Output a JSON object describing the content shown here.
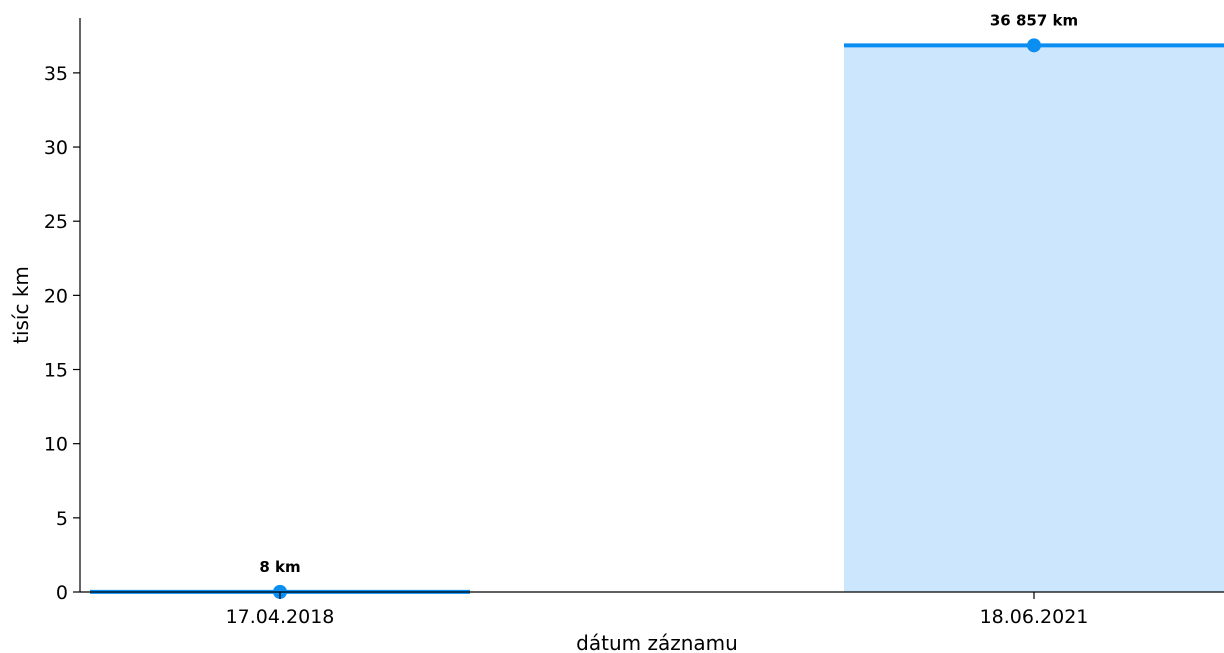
{
  "chart_data": {
    "type": "bar",
    "categories": [
      "17.04.2018",
      "18.06.2021"
    ],
    "values": [
      0.008,
      36.857
    ],
    "data_labels": [
      "8 km",
      "36 857 km"
    ],
    "xlabel": "dátum záznamu",
    "ylabel": "tisíc km",
    "ylim": [
      0,
      38.7
    ],
    "yticks": [
      0,
      5,
      10,
      15,
      20,
      25,
      30,
      35
    ],
    "grid": false,
    "legend": "none",
    "colors": {
      "fill": "#cce7fd",
      "line": "#0a8ef2",
      "axis": "#000000"
    }
  }
}
